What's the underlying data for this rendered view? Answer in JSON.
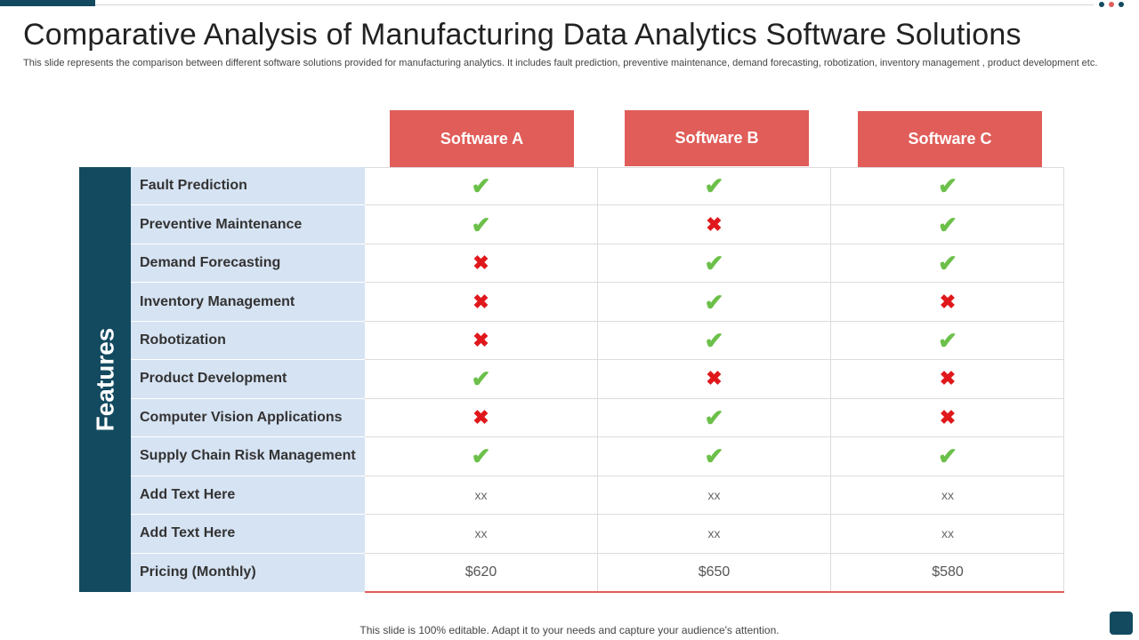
{
  "slide": {
    "title": "Comparative Analysis of Manufacturing Data Analytics Software Solutions",
    "subtitle": "This slide represents the comparison between different software solutions provided for manufacturing analytics. It includes fault prediction, preventive maintenance, demand forecasting, robotization, inventory management , product development etc.",
    "footer": "This slide is 100% editable. Adapt it to your needs and capture your audience's attention."
  },
  "colors": {
    "accent_dark": "#134a60",
    "header_red": "#e05d59",
    "feature_bg": "#d6e3f3",
    "check_green": "#6cc04a",
    "cross_red": "#e0181c"
  },
  "table": {
    "side_label": "Features",
    "columns": [
      "Software A",
      "Software B",
      "Software C"
    ],
    "rows": [
      {
        "feature": "Fault Prediction",
        "values": [
          "check",
          "check",
          "check"
        ]
      },
      {
        "feature": "Preventive Maintenance",
        "values": [
          "check",
          "cross",
          "check"
        ]
      },
      {
        "feature": "Demand Forecasting",
        "values": [
          "cross",
          "check",
          "check"
        ]
      },
      {
        "feature": "Inventory Management",
        "values": [
          "cross",
          "check",
          "cross"
        ]
      },
      {
        "feature": "Robotization",
        "values": [
          "cross",
          "check",
          "check"
        ]
      },
      {
        "feature": "Product Development",
        "values": [
          "check",
          "cross",
          "cross"
        ]
      },
      {
        "feature": "Computer Vision Applications",
        "values": [
          "cross",
          "check",
          "cross"
        ]
      },
      {
        "feature": "Supply Chain Risk Management",
        "values": [
          "check",
          "check",
          "check"
        ]
      },
      {
        "feature": "Add Text Here",
        "values": [
          "xx",
          "xx",
          "xx"
        ]
      },
      {
        "feature": "Add Text Here",
        "values": [
          "xx",
          "xx",
          "xx"
        ]
      },
      {
        "feature": "Pricing (Monthly)",
        "values": [
          "$620",
          "$650",
          "$580"
        ]
      }
    ]
  },
  "icons": {
    "check": "check-icon",
    "cross": "cross-icon"
  }
}
